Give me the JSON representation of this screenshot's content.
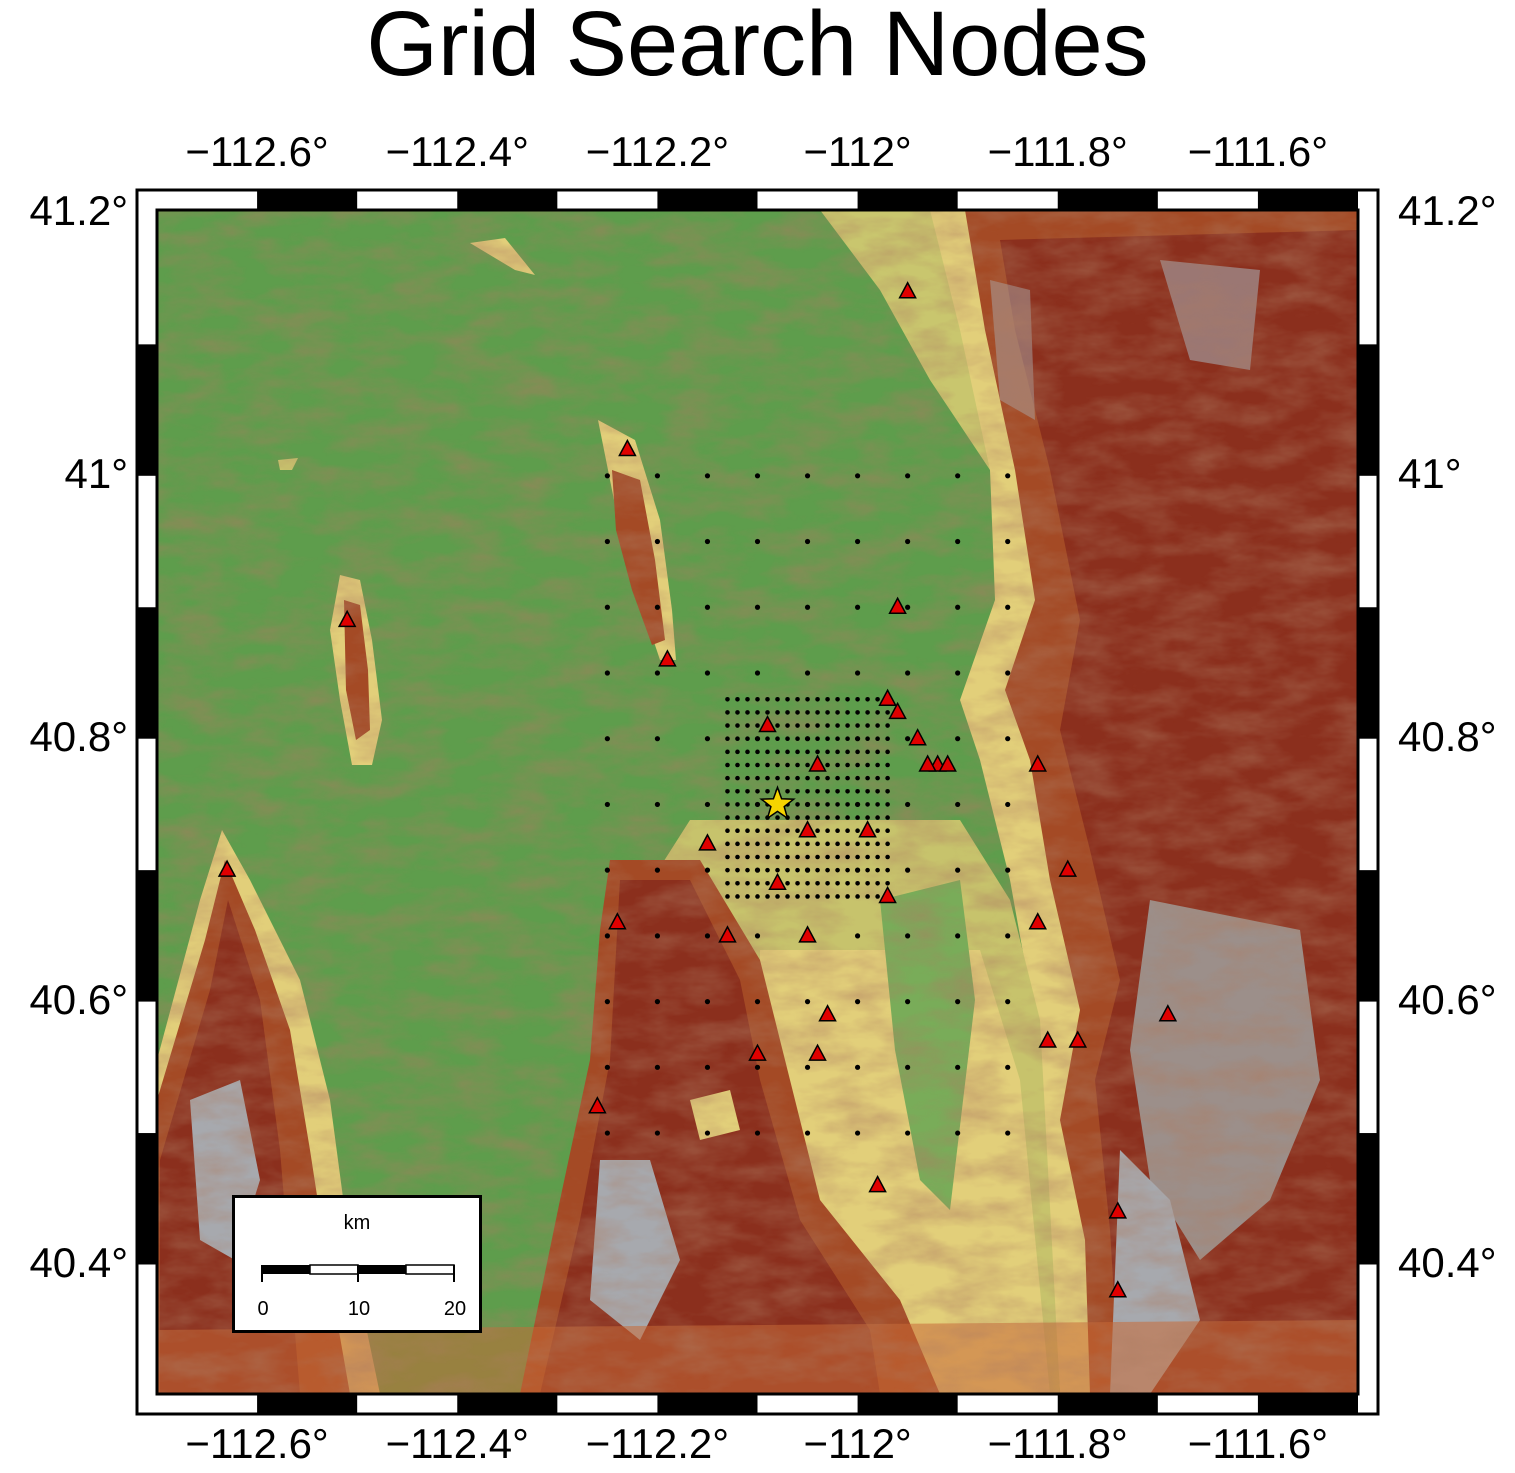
{
  "title": "Grid Search Nodes",
  "axes": {
    "lon_ticks": [
      "−112.6°",
      "−112.4°",
      "−112.2°",
      "−112°",
      "−111.8°",
      "−111.6°"
    ],
    "lat_ticks": [
      "41.2°",
      "41°",
      "40.8°",
      "40.6°",
      "40.4°"
    ],
    "lon_range": [
      -112.7,
      -111.5
    ],
    "lat_range": [
      40.3,
      41.2
    ]
  },
  "scale_bar": {
    "unit": "km",
    "ticks": [
      "0",
      "10",
      "20"
    ]
  },
  "colors": {
    "basin_green": "#5e9d4c",
    "lowland_yellow": "#e2cf7a",
    "mountain_brown": "#8b2f1d",
    "peak_gray": "#a7a9ae",
    "station_red": "#e00000",
    "epicenter_yellow": "#f5d400"
  },
  "stations": [
    [
      -111.95,
      41.14
    ],
    [
      -112.23,
      41.02
    ],
    [
      -112.51,
      40.89
    ],
    [
      -112.19,
      40.86
    ],
    [
      -111.96,
      40.9
    ],
    [
      -112.63,
      40.7
    ],
    [
      -112.09,
      40.81
    ],
    [
      -111.97,
      40.83
    ],
    [
      -111.96,
      40.82
    ],
    [
      -112.04,
      40.78
    ],
    [
      -111.94,
      40.8
    ],
    [
      -111.92,
      40.78
    ],
    [
      -111.91,
      40.78
    ],
    [
      -111.93,
      40.78
    ],
    [
      -111.82,
      40.78
    ],
    [
      -112.05,
      40.73
    ],
    [
      -111.99,
      40.73
    ],
    [
      -112.15,
      40.72
    ],
    [
      -111.79,
      40.7
    ],
    [
      -112.08,
      40.69
    ],
    [
      -111.97,
      40.68
    ],
    [
      -112.24,
      40.66
    ],
    [
      -112.13,
      40.65
    ],
    [
      -112.05,
      40.65
    ],
    [
      -111.82,
      40.66
    ],
    [
      -112.03,
      40.59
    ],
    [
      -111.69,
      40.59
    ],
    [
      -111.81,
      40.57
    ],
    [
      -111.78,
      40.57
    ],
    [
      -112.1,
      40.56
    ],
    [
      -112.04,
      40.56
    ],
    [
      -112.26,
      40.52
    ],
    [
      -111.98,
      40.46
    ],
    [
      -111.74,
      40.44
    ],
    [
      -111.74,
      40.38
    ]
  ],
  "epicenter": [
    -112.08,
    40.75
  ],
  "coarse_grid": {
    "lon": [
      -112.25,
      -111.85
    ],
    "lat": [
      40.5,
      41.0
    ],
    "step": 0.05
  },
  "fine_grid": {
    "lon": [
      -112.13,
      -111.97
    ],
    "lat": [
      40.68,
      40.83
    ],
    "step": 0.01
  }
}
